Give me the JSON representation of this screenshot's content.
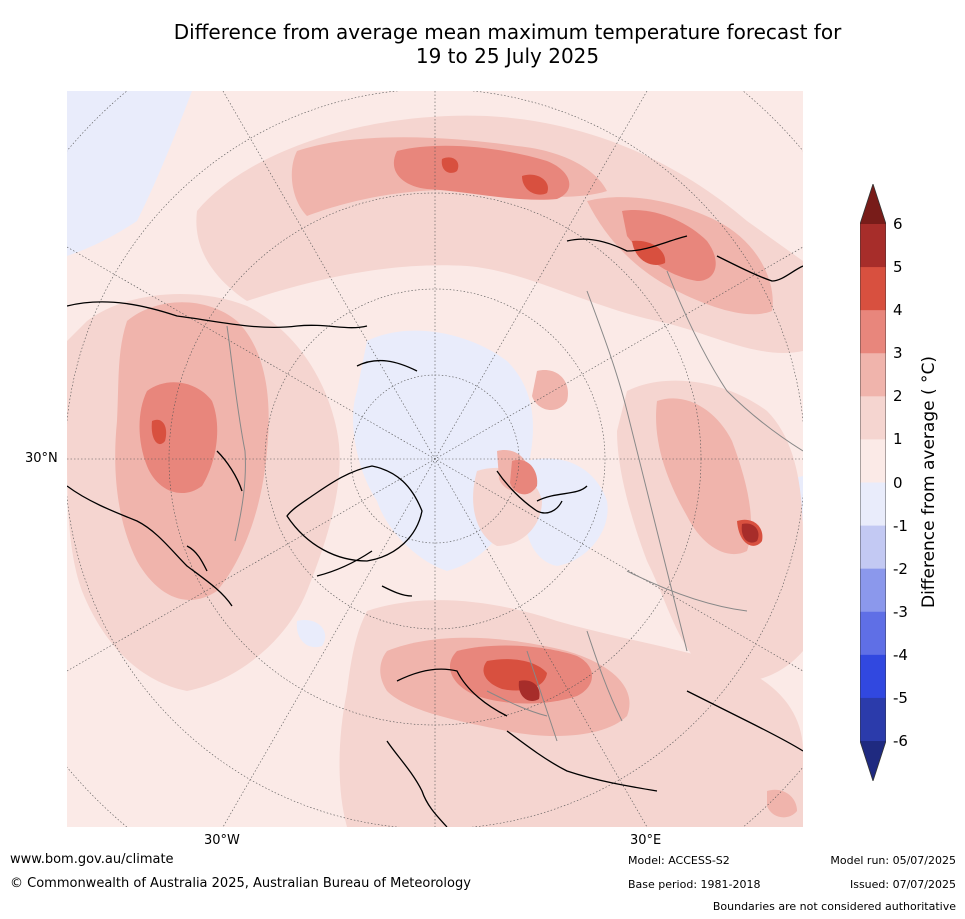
{
  "title": {
    "line1": "Difference from average mean maximum temperature forecast for",
    "line2": "19 to 25 July 2025"
  },
  "map": {
    "projection": "north-polar-stereographic",
    "labels": {
      "lat_30n": "30°N",
      "lon_30w": "30°W",
      "lon_30e": "30°E"
    },
    "background_color": "#f9e3df",
    "coastline_color": "#000000",
    "boundary_color": "#888888"
  },
  "colorbar": {
    "label": "Difference from average ( °C)",
    "ticks": [
      "6",
      "5",
      "4",
      "3",
      "2",
      "1",
      "0",
      "-1",
      "-2",
      "-3",
      "-4",
      "-5",
      "-6"
    ],
    "colors_top_to_bottom": [
      "#a72d2a",
      "#d8503f",
      "#e8867c",
      "#f0b4ac",
      "#f5d5d0",
      "#fbeae7",
      "#e9ecfb",
      "#c3c9f3",
      "#8b98ec",
      "#5f6fe6",
      "#3148e0",
      "#2b3bab"
    ],
    "extend_max_color": "#781c19",
    "extend_min_color": "#1f2a80"
  },
  "footer": {
    "website": "www.bom.gov.au/climate",
    "copyright": "© Commonwealth of Australia 2025, Australian Bureau of Meteorology",
    "model": "Model: ACCESS-S2",
    "base_period": "Base period: 1981-2018",
    "model_run": "Model run: 05/07/2025",
    "issued": "Issued: 07/07/2025",
    "disclaimer": "Boundaries are not considered authoritative"
  }
}
